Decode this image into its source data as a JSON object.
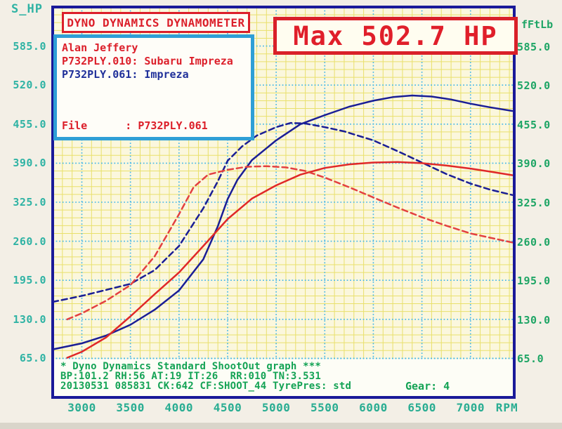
{
  "header": {
    "title": "DYNO DYNAMICS DYNAMOMETER",
    "max_power_label": "Max 502.7 HP"
  },
  "info_box": {
    "owner": "Alan Jeffery",
    "run_red": "P732PLY.010: Subaru Impreza",
    "run_blue": "P732PLY.061: Impreza",
    "file_line": "File      : P732PLY.061"
  },
  "axes": {
    "left_title": "S_HP",
    "right_title": "fFtLb",
    "x_unit": "RPM"
  },
  "footer": {
    "line1": "* Dyno Dynamics Standard ShootOut graph ***",
    "line2": "BP:101.2 RH:56 AT:19 IT:26  RR:010 TN:3.531",
    "line3": "20130531 085831 CK:642 CF:SHOOT_44 TyrePres: std",
    "gear": "Gear: 4"
  },
  "colors": {
    "page_bg": "#f3efe6",
    "plot_bg": "#fbf7dd",
    "minor_grid": "#e9e06c",
    "major_grid": "#44b7e9",
    "border": "#1a1a99",
    "run_blue": "#1a1e96",
    "run_red": "#e02828",
    "run_red_dashed": "#e34040",
    "label_teal": "#2fb3a4",
    "label_green": "#1ea565",
    "footer_green": "#14a355",
    "accent_red": "#dc1f2a",
    "info_border_blue": "#2f9fd6"
  },
  "chart_data": {
    "type": "line",
    "title": "DYNO DYNAMICS DYNAMOMETER",
    "annotation_max_power_hp": 502.7,
    "x_axis": {
      "label": "RPM",
      "min": 2700,
      "max": 7450,
      "major_ticks": [
        3000,
        3500,
        4000,
        4500,
        5000,
        5500,
        6000,
        6500,
        7000
      ],
      "minor_step": 100
    },
    "y_axis_left": {
      "label": "S_HP",
      "min": 0,
      "max": 650,
      "major_ticks": [
        585,
        520,
        455,
        390,
        325,
        260,
        195,
        130,
        65
      ],
      "minor_step": 13
    },
    "y_axis_right": {
      "label": "fFtLb",
      "min": 0,
      "max": 650,
      "major_ticks": [
        585,
        520,
        455,
        390,
        325,
        260,
        195,
        130,
        65
      ],
      "minor_step": 13
    },
    "grid": true,
    "legend_position": "top-left-info-box",
    "series": [
      {
        "id": "p732ply061-power",
        "name": "P732PLY.061 Impreza power (S_HP)",
        "color": "#1a1e96",
        "style": "solid",
        "points": [
          [
            2700,
            80
          ],
          [
            3000,
            90
          ],
          [
            3250,
            103
          ],
          [
            3500,
            121
          ],
          [
            3750,
            146
          ],
          [
            4000,
            178
          ],
          [
            4250,
            230
          ],
          [
            4400,
            285
          ],
          [
            4500,
            330
          ],
          [
            4600,
            362
          ],
          [
            4750,
            395
          ],
          [
            5000,
            428
          ],
          [
            5250,
            455
          ],
          [
            5500,
            470
          ],
          [
            5750,
            484
          ],
          [
            6000,
            494
          ],
          [
            6200,
            500
          ],
          [
            6400,
            502.7
          ],
          [
            6600,
            501
          ],
          [
            6800,
            496
          ],
          [
            7000,
            489
          ],
          [
            7200,
            483
          ],
          [
            7430,
            477
          ]
        ]
      },
      {
        "id": "p732ply061-torque",
        "name": "P732PLY.061 Impreza torque (fFtLb)",
        "color": "#1a1e96",
        "style": "dashed",
        "points": [
          [
            2700,
            159
          ],
          [
            3000,
            169
          ],
          [
            3250,
            179
          ],
          [
            3500,
            189
          ],
          [
            3750,
            212
          ],
          [
            4000,
            252
          ],
          [
            4250,
            315
          ],
          [
            4400,
            360
          ],
          [
            4500,
            394
          ],
          [
            4650,
            418
          ],
          [
            4800,
            436
          ],
          [
            5000,
            450
          ],
          [
            5150,
            457
          ],
          [
            5300,
            456
          ],
          [
            5500,
            450
          ],
          [
            5700,
            443
          ],
          [
            6000,
            428
          ],
          [
            6250,
            410
          ],
          [
            6500,
            391
          ],
          [
            6750,
            372
          ],
          [
            7000,
            356
          ],
          [
            7200,
            346
          ],
          [
            7430,
            337
          ]
        ]
      },
      {
        "id": "p732ply010-power",
        "name": "P732PLY.010 Subaru Impreza power (S_HP)",
        "color": "#e02828",
        "style": "solid",
        "points": [
          [
            2850,
            66
          ],
          [
            3000,
            76
          ],
          [
            3250,
            100
          ],
          [
            3500,
            135
          ],
          [
            3750,
            172
          ],
          [
            4000,
            208
          ],
          [
            4250,
            252
          ],
          [
            4500,
            297
          ],
          [
            4750,
            331
          ],
          [
            5000,
            353
          ],
          [
            5250,
            371
          ],
          [
            5500,
            382
          ],
          [
            5750,
            388
          ],
          [
            6000,
            391
          ],
          [
            6250,
            392
          ],
          [
            6500,
            390
          ],
          [
            6750,
            386
          ],
          [
            7000,
            381
          ],
          [
            7200,
            376
          ],
          [
            7430,
            370
          ]
        ]
      },
      {
        "id": "p732ply010-torque",
        "name": "P732PLY.010 Subaru Impreza torque (fFtLb)",
        "color": "#e34040",
        "style": "dashed",
        "points": [
          [
            2850,
            130
          ],
          [
            3000,
            140
          ],
          [
            3250,
            161
          ],
          [
            3500,
            187
          ],
          [
            3750,
            235
          ],
          [
            4000,
            305
          ],
          [
            4150,
            350
          ],
          [
            4300,
            371
          ],
          [
            4500,
            379
          ],
          [
            4700,
            384
          ],
          [
            4900,
            385
          ],
          [
            5100,
            383
          ],
          [
            5300,
            377
          ],
          [
            5500,
            366
          ],
          [
            5750,
            350
          ],
          [
            6000,
            333
          ],
          [
            6250,
            316
          ],
          [
            6500,
            300
          ],
          [
            6750,
            286
          ],
          [
            7000,
            273
          ],
          [
            7200,
            266
          ],
          [
            7430,
            258
          ]
        ]
      }
    ]
  }
}
